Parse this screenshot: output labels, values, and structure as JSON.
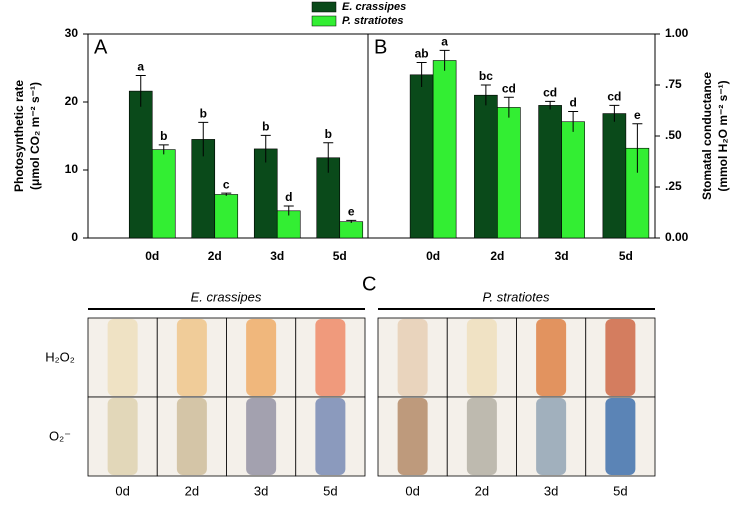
{
  "chart_data": [
    {
      "type": "bar",
      "panel_label": "A",
      "ylabel": [
        "Photosynthetic rate",
        "(μmol CO₂ m⁻² s⁻¹)"
      ],
      "categories": [
        "0d",
        "2d",
        "3d",
        "5d"
      ],
      "series": [
        {
          "name": "E. crassipes",
          "color": "#0a4a1a",
          "values": [
            21.6,
            14.5,
            13.1,
            11.8
          ],
          "errors": [
            2.3,
            2.5,
            2.0,
            2.2
          ],
          "letters": [
            "a",
            "b",
            "b",
            "b"
          ]
        },
        {
          "name": "P. stratiotes",
          "color": "#33ee33",
          "values": [
            13.0,
            6.4,
            4.0,
            2.4
          ],
          "errors": [
            0.7,
            0.2,
            0.7,
            0.2
          ],
          "letters": [
            "b",
            "c",
            "d",
            "e"
          ]
        }
      ],
      "ylim": [
        0,
        30
      ],
      "yticks": [
        0,
        10,
        20,
        30
      ]
    },
    {
      "type": "bar",
      "panel_label": "B",
      "ylabel": [
        "Stomatal conductance",
        "(mmol H₂O m⁻² s⁻¹)"
      ],
      "categories": [
        "0d",
        "2d",
        "3d",
        "5d"
      ],
      "series": [
        {
          "color": "#0a4a1a",
          "values": [
            0.8,
            0.7,
            0.65,
            0.61
          ],
          "errors": [
            0.06,
            0.05,
            0.02,
            0.04
          ],
          "letters": [
            "ab",
            "bc",
            "cd",
            "cd"
          ]
        },
        {
          "color": "#33ee33",
          "values": [
            0.87,
            0.64,
            0.57,
            0.44
          ],
          "errors": [
            0.05,
            0.05,
            0.05,
            0.12
          ],
          "letters": [
            "a",
            "cd",
            "d",
            "e"
          ]
        }
      ],
      "ylim": [
        0,
        1
      ],
      "yticks": [
        {
          "value": 0,
          "label": "0.00"
        },
        {
          "value": 0.25,
          "label": ".25"
        },
        {
          "value": 0.5,
          "label": ".50"
        },
        {
          "value": 0.75,
          "label": ".75"
        },
        {
          "value": 1,
          "label": "1.00"
        }
      ]
    }
  ],
  "panel_c": {
    "label": "C",
    "rows": [
      "H₂O₂",
      "O₂⁻"
    ],
    "groups": [
      {
        "title": "E. crassipes",
        "columns": [
          "0d",
          "2d",
          "3d",
          "5d"
        ]
      },
      {
        "title": "P. stratiotes",
        "columns": [
          "0d",
          "2d",
          "3d",
          "5d"
        ]
      }
    ]
  }
}
